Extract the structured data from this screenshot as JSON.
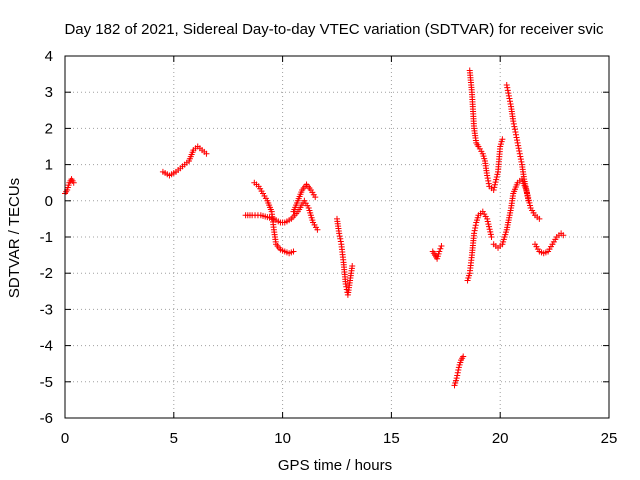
{
  "chart_data": {
    "type": "scatter",
    "title": "Day 182 of 2021, Sidereal Day-to-day VTEC variation (SDTVAR) for receiver svic",
    "xlabel": "GPS time / hours",
    "ylabel": "SDTVAR / TECUs",
    "xlim": [
      0,
      25
    ],
    "ylim": [
      -6,
      4
    ],
    "xticks": [
      "0",
      "5",
      "10",
      "15",
      "20",
      "25"
    ],
    "yticks": [
      "-6",
      "-5",
      "-4",
      "-3",
      "-2",
      "-1",
      "0",
      "1",
      "2",
      "3",
      "4"
    ],
    "grid": true,
    "marker": "+",
    "marker_color": "#ff0000",
    "series": [
      {
        "name": "SDTVAR",
        "segments": [
          [
            [
              0.0,
              0.2
            ],
            [
              0.1,
              0.3
            ],
            [
              0.2,
              0.5
            ],
            [
              0.3,
              0.6
            ],
            [
              0.4,
              0.5
            ]
          ],
          [
            [
              4.5,
              0.8
            ],
            [
              4.8,
              0.7
            ],
            [
              5.1,
              0.8
            ],
            [
              5.4,
              0.95
            ],
            [
              5.7,
              1.1
            ],
            [
              5.9,
              1.4
            ],
            [
              6.1,
              1.5
            ],
            [
              6.3,
              1.4
            ],
            [
              6.5,
              1.3
            ]
          ],
          [
            [
              8.3,
              -0.4
            ],
            [
              8.6,
              -0.4
            ],
            [
              9.0,
              -0.4
            ],
            [
              9.3,
              -0.45
            ],
            [
              9.6,
              -0.5
            ],
            [
              9.9,
              -0.6
            ],
            [
              10.1,
              -0.6
            ],
            [
              10.4,
              -0.5
            ],
            [
              10.7,
              -0.3
            ],
            [
              11.0,
              0.0
            ],
            [
              11.2,
              -0.2
            ],
            [
              11.4,
              -0.6
            ],
            [
              11.6,
              -0.8
            ]
          ],
          [
            [
              8.7,
              0.5
            ],
            [
              8.9,
              0.4
            ],
            [
              9.1,
              0.2
            ],
            [
              9.3,
              0.0
            ],
            [
              9.5,
              -0.3
            ],
            [
              9.6,
              -0.8
            ],
            [
              9.7,
              -1.2
            ],
            [
              9.9,
              -1.35
            ],
            [
              10.1,
              -1.4
            ],
            [
              10.3,
              -1.45
            ],
            [
              10.5,
              -1.4
            ]
          ],
          [
            [
              10.5,
              -0.3
            ],
            [
              10.7,
              0.0
            ],
            [
              10.9,
              0.3
            ],
            [
              11.1,
              0.45
            ],
            [
              11.3,
              0.3
            ],
            [
              11.5,
              0.1
            ]
          ],
          [
            [
              12.5,
              -0.5
            ],
            [
              12.6,
              -0.9
            ],
            [
              12.7,
              -1.2
            ],
            [
              12.8,
              -1.7
            ],
            [
              12.9,
              -2.3
            ],
            [
              13.0,
              -2.6
            ],
            [
              13.1,
              -2.2
            ],
            [
              13.2,
              -1.8
            ]
          ],
          [
            [
              16.9,
              -1.4
            ],
            [
              17.0,
              -1.5
            ],
            [
              17.1,
              -1.6
            ],
            [
              17.2,
              -1.4
            ],
            [
              17.3,
              -1.25
            ]
          ],
          [
            [
              17.9,
              -5.1
            ],
            [
              18.0,
              -4.9
            ],
            [
              18.1,
              -4.6
            ],
            [
              18.2,
              -4.4
            ],
            [
              18.3,
              -4.3
            ]
          ],
          [
            [
              18.5,
              -2.2
            ],
            [
              18.6,
              -2.0
            ],
            [
              18.7,
              -1.5
            ],
            [
              18.8,
              -0.9
            ],
            [
              18.9,
              -0.6
            ],
            [
              19.0,
              -0.4
            ],
            [
              19.2,
              -0.3
            ],
            [
              19.4,
              -0.5
            ],
            [
              19.6,
              -1.0
            ]
          ],
          [
            [
              18.6,
              3.6
            ],
            [
              18.7,
              3.0
            ],
            [
              18.8,
              2.0
            ],
            [
              18.9,
              1.6
            ],
            [
              19.0,
              1.5
            ],
            [
              19.2,
              1.3
            ],
            [
              19.3,
              1.1
            ],
            [
              19.4,
              0.7
            ],
            [
              19.5,
              0.4
            ],
            [
              19.7,
              0.3
            ],
            [
              19.9,
              0.8
            ],
            [
              20.0,
              1.5
            ],
            [
              20.1,
              1.7
            ]
          ],
          [
            [
              19.7,
              -1.2
            ],
            [
              19.9,
              -1.3
            ],
            [
              20.1,
              -1.2
            ],
            [
              20.3,
              -0.8
            ],
            [
              20.5,
              -0.2
            ],
            [
              20.6,
              0.2
            ],
            [
              20.8,
              0.5
            ],
            [
              21.0,
              0.6
            ],
            [
              21.2,
              0.3
            ],
            [
              21.4,
              -0.2
            ],
            [
              21.6,
              -0.4
            ],
            [
              21.8,
              -0.5
            ]
          ],
          [
            [
              20.3,
              3.2
            ],
            [
              20.4,
              2.9
            ],
            [
              20.5,
              2.6
            ],
            [
              20.6,
              2.2
            ],
            [
              20.7,
              1.9
            ],
            [
              20.8,
              1.6
            ],
            [
              20.9,
              1.3
            ],
            [
              21.0,
              1.0
            ],
            [
              21.1,
              0.6
            ],
            [
              21.3,
              0.0
            ]
          ],
          [
            [
              21.6,
              -1.2
            ],
            [
              21.8,
              -1.4
            ],
            [
              22.0,
              -1.45
            ],
            [
              22.2,
              -1.4
            ],
            [
              22.4,
              -1.2
            ],
            [
              22.6,
              -1.0
            ],
            [
              22.8,
              -0.9
            ],
            [
              22.9,
              -0.95
            ]
          ]
        ]
      }
    ]
  }
}
